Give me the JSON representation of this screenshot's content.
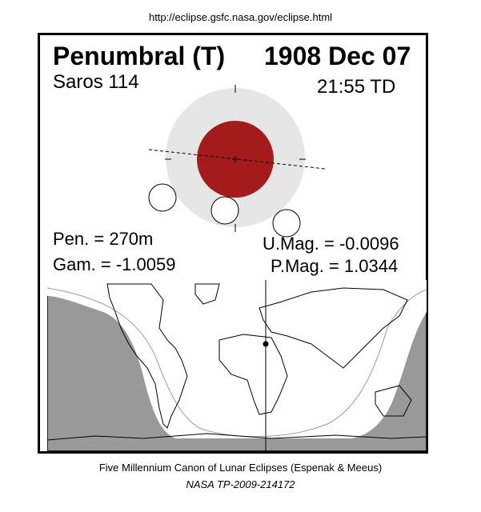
{
  "header": {
    "url": "http://eclipse.gsfc.nasa.gov/eclipse.html"
  },
  "eclipse": {
    "type": "Penumbral (T)",
    "date": "1908 Dec 07",
    "saros": "Saros 114",
    "time": "21:55 TD",
    "pen": "Pen. = 270m",
    "gam": "Gam. = -1.0059",
    "umag": "U.Mag. = -0.0096",
    "pmag": "P.Mag. = 1.0344"
  },
  "colors": {
    "umbra": "#a51b1b",
    "penumbra": "#e6e6e6",
    "night": "#999999",
    "visible": "#ffffff"
  },
  "footer": {
    "caption": "Five Millennium Canon of Lunar Eclipses (Espenak & Meeus)",
    "reference": "NASA TP-2009-214172"
  }
}
